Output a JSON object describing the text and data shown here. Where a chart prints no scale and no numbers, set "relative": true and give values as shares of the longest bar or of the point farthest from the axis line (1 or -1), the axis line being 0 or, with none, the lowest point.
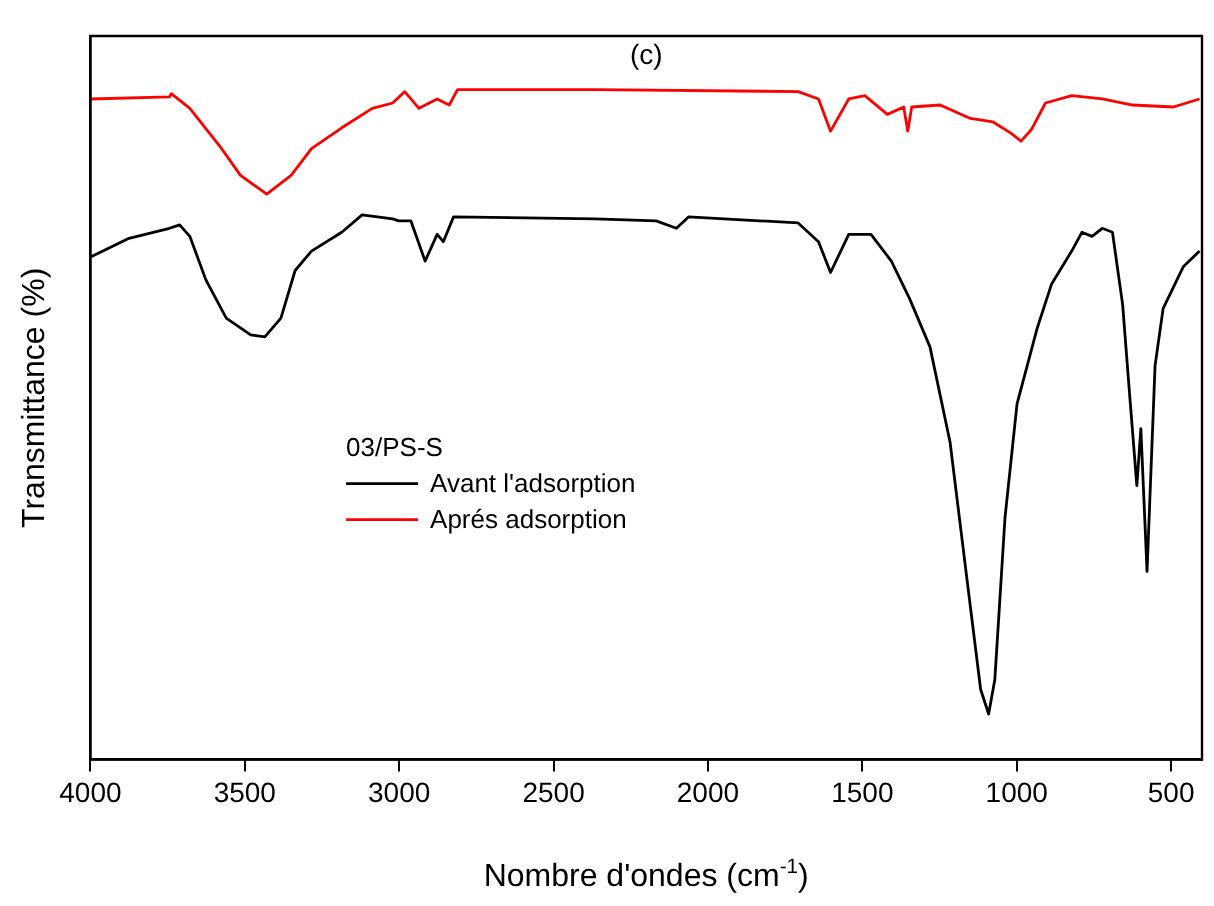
{
  "chart_data": {
    "type": "line",
    "title": "(c)",
    "xlabel": "Nombre d'ondes (cm$^{-1}$)",
    "ylabel": "Transmittance (%)",
    "legend_title": "03/PS-S",
    "legend": "left",
    "relative": true,
    "grid": false,
    "marker": "none",
    "line_style": "solid",
    "xlim": [
      4000,
      400
    ],
    "xticks": [
      4000,
      3500,
      3000,
      2500,
      2000,
      1500,
      1000,
      500
    ],
    "series": [
      {
        "name": "Avant l'adsorption",
        "color": "#000000",
        "x": [
          4000,
          3875,
          3744,
          3711,
          3678,
          3626,
          3560,
          3481,
          3435,
          3383,
          3337,
          3284,
          3186,
          3120,
          3021,
          3002,
          2962,
          2916,
          2877,
          2857,
          2824,
          2365,
          2168,
          2102,
          2063,
          1708,
          1642,
          1603,
          1544,
          1472,
          1406,
          1347,
          1281,
          1216,
          1163,
          1117,
          1091,
          1071,
          1038,
          999,
          966,
          933,
          887,
          822,
          789,
          756,
          723,
          690,
          657,
          637,
          611,
          598,
          578,
          552,
          526,
          460,
          408
        ],
        "values": [
          0.75,
          0.778,
          0.793,
          0.798,
          0.781,
          0.716,
          0.659,
          0.634,
          0.631,
          0.659,
          0.73,
          0.759,
          0.787,
          0.813,
          0.807,
          0.804,
          0.804,
          0.744,
          0.784,
          0.773,
          0.81,
          0.807,
          0.804,
          0.793,
          0.81,
          0.801,
          0.773,
          0.727,
          0.784,
          0.784,
          0.744,
          0.688,
          0.616,
          0.474,
          0.276,
          0.105,
          0.068,
          0.119,
          0.361,
          0.531,
          0.588,
          0.645,
          0.71,
          0.759,
          0.787,
          0.781,
          0.793,
          0.787,
          0.679,
          0.56,
          0.409,
          0.494,
          0.281,
          0.588,
          0.673,
          0.736,
          0.759
        ]
      },
      {
        "name": "Aprés adsorption",
        "color": "#ff0000",
        "x": [
          4000,
          3744,
          3738,
          3678,
          3580,
          3514,
          3429,
          3350,
          3284,
          3186,
          3087,
          3021,
          2982,
          2936,
          2877,
          2838,
          2811,
          2365,
          1708,
          1642,
          1603,
          1544,
          1492,
          1419,
          1366,
          1353,
          1340,
          1248,
          1150,
          1078,
          1019,
          986,
          953,
          907,
          822,
          723,
          625,
          493,
          408
        ],
        "values": [
          0.986,
          0.989,
          0.994,
          0.972,
          0.915,
          0.872,
          0.844,
          0.872,
          0.912,
          0.943,
          0.972,
          0.98,
          0.997,
          0.972,
          0.986,
          0.977,
          1,
          1,
          0.997,
          0.986,
          0.938,
          0.986,
          0.991,
          0.963,
          0.974,
          0.938,
          0.974,
          0.977,
          0.957,
          0.952,
          0.935,
          0.923,
          0.94,
          0.98,
          0.991,
          0.986,
          0.977,
          0.974,
          0.986
        ]
      }
    ]
  }
}
